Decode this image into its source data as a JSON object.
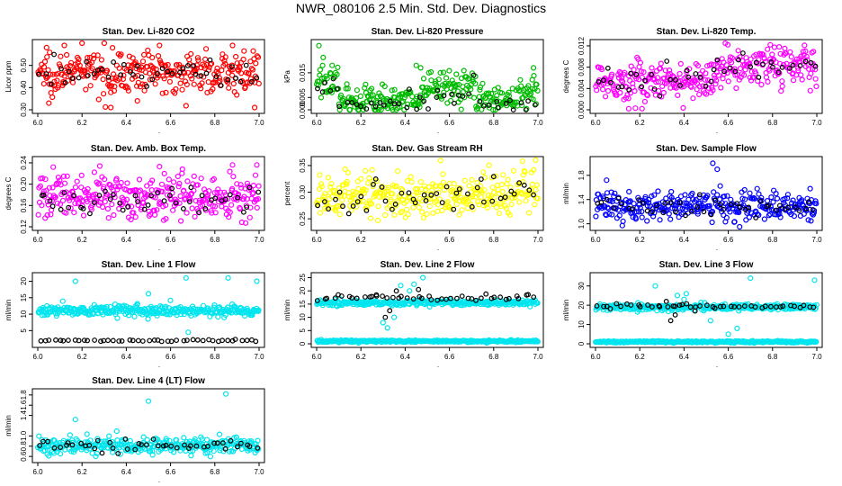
{
  "title": "NWR_080106  2.5 Min. Std. Dev. Diagnostics",
  "colors": {
    "red": "#ff0000",
    "green": "#00bb00",
    "magenta": "#ff00ff",
    "yellow": "#ffff00",
    "blue": "#0000ff",
    "cyan": "#00e5ee",
    "black": "#000000"
  },
  "chart_data": [
    {
      "id": "co2",
      "type": "scatter",
      "title": "Stan. Dev. Li-820 CO2",
      "ylabel": "Licor ppm",
      "xlim": [
        6.0,
        7.0
      ],
      "xticks": [
        "6.0",
        "6.2",
        "6.4",
        "6.6",
        "6.8",
        "7.0"
      ],
      "ylim": [
        0.3,
        0.6
      ],
      "yticks": [
        "0.30",
        "0.40",
        "0.50"
      ],
      "ytick_values": [
        0.3,
        0.4,
        0.5
      ],
      "color": "#ff0000",
      "series": [
        {
          "name": "all samples",
          "segments": [
            [
              6.0,
              0.47,
              0.045
            ]
          ],
          "outliers": [
            [
              6.04,
              0.58
            ],
            [
              6.12,
              0.59
            ],
            [
              6.2,
              0.6
            ],
            [
              6.33,
              0.31
            ],
            [
              6.55,
              0.59
            ],
            [
              6.98,
              0.31
            ],
            [
              6.88,
              0.59
            ],
            [
              6.05,
              0.33
            ],
            [
              6.45,
              0.34
            ]
          ]
        },
        {
          "name": "averages",
          "color": "#000000",
          "segments": [
            [
              6.0,
              0.46,
              0.03
            ]
          ]
        }
      ]
    },
    {
      "id": "pressure",
      "type": "scatter",
      "title": "Stan. Dev. Li-820 Pressure",
      "ylabel": "kPa",
      "xlim": [
        6.0,
        7.0
      ],
      "xticks": [
        "6.0",
        "6.2",
        "6.4",
        "6.6",
        "6.8",
        "7.0"
      ],
      "ylim": [
        0.0,
        0.027
      ],
      "yticks": [
        "0.000",
        "0.005",
        "0.015"
      ],
      "ytick_values": [
        0.0,
        0.005,
        0.015
      ],
      "color": "#00bb00",
      "series": [
        {
          "name": "all samples",
          "segments": [
            [
              6.0,
              0.011,
              0.004
            ],
            [
              6.1,
              0.004,
              0.003
            ],
            [
              6.48,
              0.009,
              0.004
            ],
            [
              6.72,
              0.004,
              0.003
            ],
            [
              6.9,
              0.007,
              0.004
            ]
          ],
          "outliers": [
            [
              6.01,
              0.026
            ],
            [
              6.45,
              0.018
            ],
            [
              6.47,
              0.017
            ],
            [
              6.98,
              0.017
            ],
            [
              6.07,
              0.018
            ]
          ]
        },
        {
          "name": "averages",
          "color": "#000000",
          "segments": [
            [
              6.0,
              0.008,
              0.004
            ],
            [
              6.1,
              0.003,
              0.002
            ],
            [
              6.5,
              0.007,
              0.003
            ],
            [
              6.75,
              0.003,
              0.002
            ]
          ]
        }
      ]
    },
    {
      "id": "temp",
      "type": "scatter",
      "title": "Stan. Dev. Li-820 Temp.",
      "ylabel": "degrees C",
      "xlim": [
        6.0,
        7.0
      ],
      "xticks": [
        "6.0",
        "6.2",
        "6.4",
        "6.6",
        "6.8",
        "7.0"
      ],
      "ylim": [
        0.0,
        0.0125
      ],
      "yticks": [
        "0.000",
        "0.004",
        "0.008",
        "0.012"
      ],
      "ytick_values": [
        0.0,
        0.004,
        0.008,
        0.012
      ],
      "color": "#ff00ff",
      "series": [
        {
          "name": "all samples",
          "segments": [
            [
              6.0,
              0.0055,
              0.0018
            ],
            [
              6.55,
              0.008,
              0.0018
            ],
            [
              6.85,
              0.0085,
              0.0018
            ]
          ],
          "outliers": [
            [
              6.15,
              0.0002
            ],
            [
              6.18,
              0.0003
            ],
            [
              6.21,
              0.0002
            ],
            [
              6.79,
              0.0122
            ],
            [
              6.83,
              0.0118
            ]
          ]
        },
        {
          "name": "averages",
          "color": "#000000",
          "segments": [
            [
              6.0,
              0.0058,
              0.0014
            ],
            [
              6.55,
              0.0082,
              0.0014
            ]
          ]
        }
      ]
    },
    {
      "id": "ambbox",
      "type": "scatter",
      "title": "Stan. Dev. Amb. Box Temp.",
      "ylabel": "degrees C",
      "xlim": [
        6.0,
        7.0
      ],
      "xticks": [
        "6.0",
        "6.2",
        "6.4",
        "6.6",
        "6.8",
        "7.0"
      ],
      "ylim": [
        0.12,
        0.245
      ],
      "yticks": [
        "0.12",
        "0.16",
        "0.20",
        "0.24"
      ],
      "ytick_values": [
        0.12,
        0.16,
        0.2,
        0.24
      ],
      "color": "#ff00ff",
      "series": [
        {
          "name": "all samples",
          "segments": [
            [
              6.0,
              0.175,
              0.02
            ]
          ],
          "outliers": [
            [
              6.07,
              0.232
            ],
            [
              6.28,
              0.234
            ],
            [
              6.55,
              0.233
            ],
            [
              6.88,
              0.236
            ],
            [
              6.99,
              0.236
            ]
          ]
        },
        {
          "name": "averages",
          "color": "#000000",
          "segments": [
            [
              6.0,
              0.17,
              0.015
            ]
          ]
        }
      ]
    },
    {
      "id": "rh",
      "type": "scatter",
      "title": "Stan. Dev. Gas Stream RH",
      "ylabel": "percent",
      "xlim": [
        6.0,
        7.0
      ],
      "xticks": [
        "6.0",
        "6.2",
        "6.4",
        "6.6",
        "6.8",
        "7.0"
      ],
      "ylim": [
        0.235,
        0.36
      ],
      "yticks": [
        "0.25",
        "0.30",
        "0.35"
      ],
      "ytick_values": [
        0.25,
        0.3,
        0.35
      ],
      "color": "#ffff00",
      "series": [
        {
          "name": "all samples",
          "segments": [
            [
              6.0,
              0.295,
              0.02
            ]
          ],
          "outliers": [
            [
              6.93,
              0.358
            ],
            [
              6.99,
              0.36
            ],
            [
              6.22,
              0.34
            ],
            [
              6.89,
              0.34
            ]
          ]
        },
        {
          "name": "averages",
          "color": "#000000",
          "segments": [
            [
              6.0,
              0.29,
              0.02
            ]
          ]
        }
      ]
    },
    {
      "id": "sampleflow",
      "type": "scatter",
      "title": "Stan. Dev. Sample Flow",
      "ylabel": "ml/min",
      "xlim": [
        6.0,
        7.0
      ],
      "xticks": [
        "6.0",
        "6.2",
        "6.4",
        "6.6",
        "6.8",
        "7.0"
      ],
      "ylim": [
        0.95,
        2.05
      ],
      "yticks": [
        "1.0",
        "1.4",
        "1.8"
      ],
      "ytick_values": [
        1.0,
        1.4,
        1.8
      ],
      "color": "#0000ff",
      "series": [
        {
          "name": "all samples",
          "segments": [
            [
              6.0,
              1.3,
              0.12
            ]
          ],
          "outliers": [
            [
              6.53,
              2.0
            ],
            [
              6.55,
              1.9
            ],
            [
              6.05,
              1.72
            ],
            [
              6.97,
              1.58
            ]
          ]
        },
        {
          "name": "averages",
          "color": "#000000",
          "segments": [
            [
              6.0,
              1.27,
              0.08
            ]
          ]
        }
      ]
    },
    {
      "id": "line1",
      "type": "scatter",
      "title": "Stan. Dev. Line 1 Flow",
      "ylabel": "ml/min",
      "xlim": [
        6.0,
        7.0
      ],
      "xticks": [
        "6.0",
        "6.2",
        "6.4",
        "6.6",
        "6.8",
        "7.0"
      ],
      "ylim": [
        1.0,
        21.5
      ],
      "yticks": [
        "5",
        "10",
        "15",
        "20"
      ],
      "ytick_values": [
        5,
        10,
        15,
        20
      ],
      "color": "#00e5ee",
      "series": [
        {
          "name": "all samples",
          "segments": [
            [
              6.0,
              11.0,
              0.8
            ]
          ],
          "outliers": [
            [
              6.17,
              20.0
            ],
            [
              6.67,
              21.0
            ],
            [
              6.86,
              21.0
            ],
            [
              6.99,
              20.0
            ],
            [
              6.68,
              4.5
            ],
            [
              6.5,
              16.2
            ]
          ]
        },
        {
          "name": "averages",
          "color": "#000000",
          "segments": [
            [
              6.0,
              2.0,
              0.15
            ]
          ]
        }
      ]
    },
    {
      "id": "line2",
      "type": "scatter",
      "title": "Stan. Dev. Line 2 Flow",
      "ylabel": "ml/min",
      "xlim": [
        6.0,
        7.0
      ],
      "xticks": [
        "6.0",
        "6.2",
        "6.4",
        "6.6",
        "6.8",
        "7.0"
      ],
      "ylim": [
        0.0,
        25.5
      ],
      "yticks": [
        "0",
        "5",
        "10",
        "15",
        "20",
        "25"
      ],
      "ytick_values": [
        0,
        5,
        10,
        15,
        20,
        25
      ],
      "color": "#00e5ee",
      "series": [
        {
          "name": "all samples",
          "segments": [
            [
              6.0,
              15.5,
              0.5
            ],
            [
              6.0,
              1.0,
              0.2
            ]
          ],
          "outliers": [
            [
              6.3,
              8.0
            ],
            [
              6.32,
              6.0
            ],
            [
              6.35,
              10.0
            ],
            [
              6.38,
              22.0
            ],
            [
              6.42,
              20.0
            ],
            [
              6.44,
              22.5
            ],
            [
              6.48,
              25.0
            ],
            [
              6.45,
              15.0
            ]
          ]
        },
        {
          "name": "averages",
          "color": "#000000",
          "segments": [
            [
              6.0,
              17.5,
              0.6
            ]
          ],
          "outliers": [
            [
              6.27,
              18.5
            ],
            [
              6.31,
              10.0
            ],
            [
              6.33,
              12.5
            ],
            [
              6.36,
              20.0
            ],
            [
              6.46,
              20.5
            ]
          ]
        }
      ]
    },
    {
      "id": "line3",
      "type": "scatter",
      "title": "Stan. Dev. Line 3 Flow",
      "ylabel": "ml/min",
      "xlim": [
        6.0,
        7.0
      ],
      "xticks": [
        "6.0",
        "6.2",
        "6.4",
        "6.6",
        "6.8",
        "7.0"
      ],
      "ylim": [
        0.0,
        35.0
      ],
      "yticks": [
        "0",
        "10",
        "20",
        "30"
      ],
      "ytick_values": [
        0,
        10,
        20,
        30
      ],
      "color": "#00e5ee",
      "series": [
        {
          "name": "all samples",
          "segments": [
            [
              6.0,
              19.0,
              0.8
            ],
            [
              6.0,
              1.0,
              0.25
            ]
          ],
          "outliers": [
            [
              6.27,
              30.0
            ],
            [
              6.33,
              20.0
            ],
            [
              6.37,
              25.0
            ],
            [
              6.4,
              23.0
            ],
            [
              6.41,
              26.0
            ],
            [
              6.52,
              12.0
            ],
            [
              6.6,
              5.0
            ],
            [
              6.64,
              8.0
            ],
            [
              6.99,
              33.0
            ],
            [
              6.7,
              34.0
            ]
          ]
        },
        {
          "name": "averages",
          "color": "#000000",
          "segments": [
            [
              6.0,
              19.5,
              0.6
            ]
          ],
          "outliers": [
            [
              6.32,
              22.0
            ],
            [
              6.34,
              12.0
            ],
            [
              6.36,
              15.0
            ],
            [
              6.38,
              20.0
            ],
            [
              6.45,
              17.0
            ]
          ]
        }
      ]
    },
    {
      "id": "line4",
      "type": "scatter",
      "title": "Stan. Dev. Line 4 (LT) Flow",
      "ylabel": "ml/min",
      "xlim": [
        6.0,
        7.0
      ],
      "xticks": [
        "6.0",
        "6.2",
        "6.4",
        "6.6",
        "6.8",
        "7.0"
      ],
      "ylim": [
        0.55,
        1.85
      ],
      "yticks": [
        "0.6",
        "0.8",
        "1.0",
        "1.4",
        "1.6",
        "1.8"
      ],
      "ytick_values": [
        0.6,
        0.8,
        1.0,
        1.4,
        1.6,
        1.8
      ],
      "color": "#00e5ee",
      "series": [
        {
          "name": "all samples",
          "segments": [
            [
              6.0,
              0.82,
              0.08
            ]
          ],
          "outliers": [
            [
              6.17,
              1.32
            ],
            [
              6.5,
              1.68
            ],
            [
              6.85,
              1.82
            ],
            [
              6.78,
              0.6
            ],
            [
              6.05,
              0.61
            ]
          ]
        },
        {
          "name": "averages",
          "color": "#000000",
          "segments": [
            [
              6.0,
              0.8,
              0.06
            ]
          ]
        }
      ]
    }
  ]
}
